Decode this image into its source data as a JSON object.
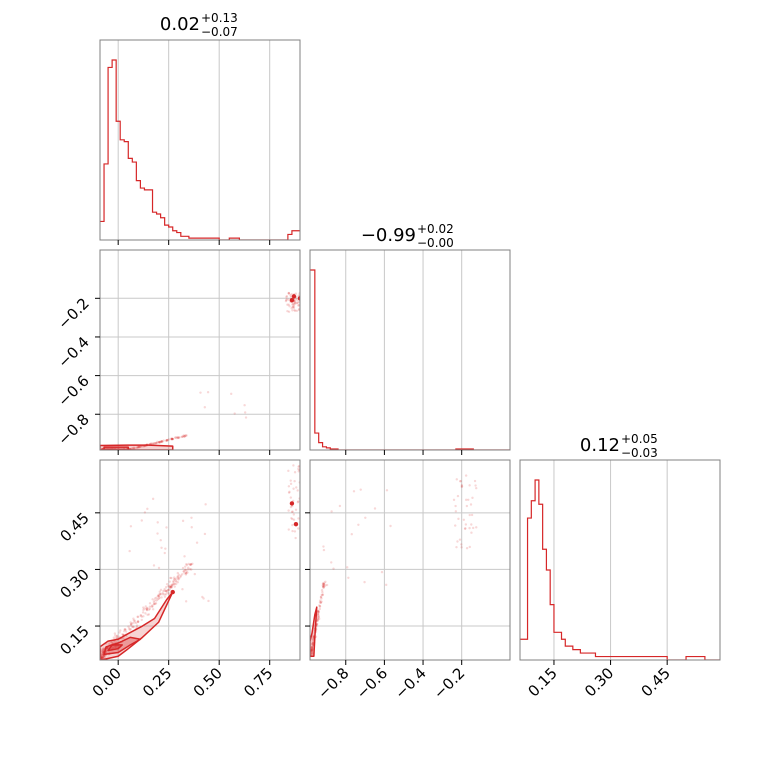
{
  "chart_data": {
    "type": "corner",
    "color": "#d62728",
    "grid": true,
    "titles": [
      {
        "value": "0.02",
        "plus": "+0.13",
        "minus": "−0.07"
      },
      {
        "value": "−0.99",
        "plus": "+0.02",
        "minus": "−0.00"
      },
      {
        "value": "0.12",
        "plus": "+0.05",
        "minus": "−0.03"
      }
    ],
    "params": [
      {
        "range": [
          -0.09,
          0.9
        ],
        "ticks": [
          0.0,
          0.25,
          0.5,
          0.75
        ],
        "tick_labels": [
          "0.00",
          "0.25",
          "0.50",
          "0.75"
        ]
      },
      {
        "range": [
          -0.985,
          0.05
        ],
        "ticks": [
          -0.8,
          -0.6,
          -0.4,
          -0.2
        ],
        "tick_labels": [
          "−0.8",
          "−0.6",
          "−0.4",
          "−0.2"
        ]
      },
      {
        "range": [
          0.06,
          0.59
        ],
        "ticks": [
          0.15,
          0.3,
          0.45
        ],
        "tick_labels": [
          "0.15",
          "0.30",
          "0.45"
        ]
      }
    ],
    "hist1": {
      "bins": [
        -0.09,
        -0.07,
        -0.05,
        -0.03,
        -0.01,
        0.01,
        0.03,
        0.05,
        0.07,
        0.09,
        0.11,
        0.13,
        0.15,
        0.17,
        0.19,
        0.21,
        0.23,
        0.25,
        0.27,
        0.29,
        0.31,
        0.33,
        0.35,
        0.37,
        0.39,
        0.41,
        0.45,
        0.5,
        0.55,
        0.6,
        0.65,
        0.7,
        0.75,
        0.8,
        0.84,
        0.86,
        0.88,
        0.9
      ],
      "counts": [
        10,
        41,
        93,
        97,
        64,
        54,
        53,
        44,
        42,
        32,
        28,
        27,
        27,
        15,
        14,
        12,
        8,
        7,
        5,
        4,
        2,
        2,
        1,
        1,
        1,
        1,
        1,
        0,
        1,
        0,
        0,
        0,
        0,
        0,
        3,
        5,
        5
      ]
    },
    "hist2": {
      "bins": [
        -0.985,
        -0.96,
        -0.94,
        -0.92,
        -0.9,
        -0.88,
        -0.86,
        -0.84,
        -0.82,
        -0.5,
        -0.23,
        -0.2,
        -0.17,
        -0.14,
        0.05
      ],
      "counts": [
        170,
        16,
        7,
        3,
        2,
        1,
        1,
        0,
        0,
        0,
        1,
        1,
        1,
        0
      ]
    },
    "hist3": {
      "bins": [
        0.06,
        0.08,
        0.09,
        0.1,
        0.11,
        0.12,
        0.13,
        0.14,
        0.15,
        0.16,
        0.17,
        0.18,
        0.19,
        0.2,
        0.22,
        0.24,
        0.26,
        0.28,
        0.3,
        0.34,
        0.4,
        0.45,
        0.5,
        0.55,
        0.59
      ],
      "counts": [
        6,
        41,
        46,
        52,
        45,
        32,
        26,
        16,
        8,
        8,
        6,
        4,
        4,
        3,
        2,
        2,
        1,
        1,
        1,
        1,
        1,
        0,
        1,
        0
      ]
    },
    "contours": {
      "p1_p2": [
        {
          "points": [
            [
              -0.09,
              -0.985
            ],
            [
              0.27,
              -0.985
            ],
            [
              0.27,
              -0.965
            ],
            [
              0.15,
              -0.96
            ],
            [
              0.05,
              -0.96
            ],
            [
              -0.09,
              -0.962
            ]
          ],
          "fill": 0.2
        },
        {
          "points": [
            [
              -0.07,
              -0.985
            ],
            [
              0.05,
              -0.985
            ],
            [
              0.05,
              -0.97
            ],
            [
              -0.07,
              -0.97
            ]
          ],
          "fill": 0.35
        }
      ],
      "p1_p3": [
        {
          "points": [
            [
              -0.085,
              0.06
            ],
            [
              0.0,
              0.07
            ],
            [
              0.05,
              0.09
            ],
            [
              0.12,
              0.12
            ],
            [
              0.2,
              0.16
            ],
            [
              0.27,
              0.24
            ],
            [
              0.24,
              0.22
            ],
            [
              0.18,
              0.17
            ],
            [
              0.12,
              0.15
            ],
            [
              0.05,
              0.13
            ],
            [
              0.0,
              0.115
            ],
            [
              -0.05,
              0.11
            ],
            [
              -0.09,
              0.095
            ]
          ],
          "fill": 0.2
        },
        {
          "points": [
            [
              -0.07,
              0.075
            ],
            [
              0.0,
              0.08
            ],
            [
              0.06,
              0.1
            ],
            [
              0.11,
              0.115
            ],
            [
              0.06,
              0.12
            ],
            [
              0.0,
              0.105
            ],
            [
              -0.06,
              0.095
            ]
          ],
          "fill": 0.35
        },
        {
          "points": [
            [
              -0.05,
              0.085
            ],
            [
              0.0,
              0.09
            ],
            [
              0.02,
              0.1
            ],
            [
              -0.03,
              0.1
            ]
          ],
          "fill": 0.5
        }
      ],
      "p2_p3": [
        {
          "points": [
            [
              -0.985,
              0.07
            ],
            [
              -0.965,
              0.07
            ],
            [
              -0.96,
              0.12
            ],
            [
              -0.955,
              0.16
            ],
            [
              -0.95,
              0.2
            ],
            [
              -0.96,
              0.18
            ],
            [
              -0.975,
              0.13
            ],
            [
              -0.985,
              0.11
            ]
          ],
          "fill": 0.25
        }
      ]
    },
    "dense_points": {
      "p1_p2": [
        [
          0.86,
          -0.21
        ],
        [
          0.9,
          -0.2
        ],
        [
          0.87,
          -0.19
        ],
        [
          0.92,
          -0.19
        ]
      ],
      "p1_p3": [
        [
          0.27,
          0.24
        ],
        [
          0.86,
          0.475
        ],
        [
          0.88,
          0.42
        ]
      ]
    }
  }
}
